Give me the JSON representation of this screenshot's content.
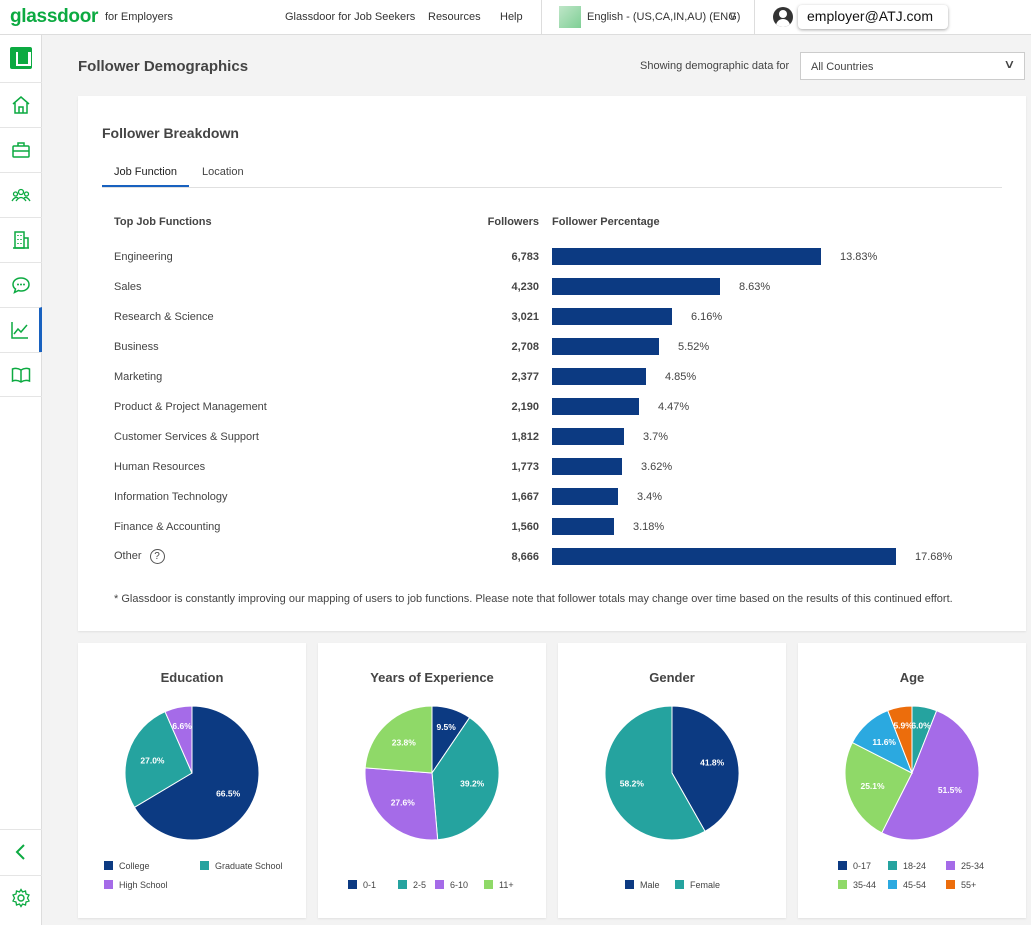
{
  "topbar": {
    "logo": "glassdoor",
    "logo_sub": "for Employers",
    "nav": [
      "Glassdoor for Job Seekers",
      "Resources",
      "Help"
    ],
    "language": "English - (US,CA,IN,AU) (ENG)",
    "user_email": "employer@ATJ.com"
  },
  "sidebar": {
    "items": [
      "home-icon",
      "briefcase-icon",
      "people-icon",
      "building-icon",
      "chat-icon",
      "analytics-icon",
      "book-icon"
    ],
    "active": "analytics-icon"
  },
  "page": {
    "title": "Follower Demographics",
    "filter_label": "Showing demographic data for",
    "filter_value": "All Countries"
  },
  "breakdown": {
    "title": "Follower Breakdown",
    "tabs": [
      "Job Function",
      "Location"
    ],
    "active_tab": "Job Function",
    "col_function": "Top Job Functions",
    "col_followers": "Followers",
    "col_percentage": "Follower Percentage",
    "rows": [
      {
        "label": "Engineering",
        "count": "6,783",
        "pct": "13.83%",
        "value": 13.83
      },
      {
        "label": "Sales",
        "count": "4,230",
        "pct": "8.63%",
        "value": 8.63
      },
      {
        "label": "Research & Science",
        "count": "3,021",
        "pct": "6.16%",
        "value": 6.16
      },
      {
        "label": "Business",
        "count": "2,708",
        "pct": "5.52%",
        "value": 5.52
      },
      {
        "label": "Marketing",
        "count": "2,377",
        "pct": "4.85%",
        "value": 4.85
      },
      {
        "label": "Product & Project Management",
        "count": "2,190",
        "pct": "4.47%",
        "value": 4.47
      },
      {
        "label": "Customer Services & Support",
        "count": "1,812",
        "pct": "3.7%",
        "value": 3.7
      },
      {
        "label": "Human Resources",
        "count": "1,773",
        "pct": "3.62%",
        "value": 3.62
      },
      {
        "label": "Information Technology",
        "count": "1,667",
        "pct": "3.4%",
        "value": 3.4
      },
      {
        "label": "Finance & Accounting",
        "count": "1,560",
        "pct": "3.18%",
        "value": 3.18
      },
      {
        "label": "Other",
        "count": "8,666",
        "pct": "17.68%",
        "value": 17.68,
        "help": "?"
      }
    ],
    "footnote": "* Glassdoor is constantly improving our mapping of users to job functions. Please note that follower totals may change over time based on the results of this continued effort."
  },
  "colors": {
    "bar": "#0c3a82",
    "accent": "#0caa41",
    "navy": "#0c3a82",
    "teal": "#25a39f",
    "purple": "#a56be8",
    "green": "#8fd968",
    "sky": "#2ba9e0",
    "orange": "#ec6d0c"
  },
  "chart_data": [
    {
      "type": "pie",
      "title": "Education",
      "slices": [
        {
          "name": "College",
          "value": 66.5,
          "label": "66.5%",
          "color": "#0c3a82"
        },
        {
          "name": "Graduate School",
          "value": 27.0,
          "label": "27.0%",
          "color": "#25a39f"
        },
        {
          "name": "High School",
          "value": 6.6,
          "label": "6.6%",
          "color": "#a56be8"
        }
      ]
    },
    {
      "type": "pie",
      "title": "Years of Experience",
      "slices": [
        {
          "name": "0-1",
          "value": 9.5,
          "label": "9.5%",
          "color": "#0c3a82"
        },
        {
          "name": "2-5",
          "value": 39.2,
          "label": "39.2%",
          "color": "#25a39f"
        },
        {
          "name": "6-10",
          "value": 27.6,
          "label": "27.6%",
          "color": "#a56be8"
        },
        {
          "name": "11+",
          "value": 23.8,
          "label": "23.8%",
          "color": "#8fd968"
        }
      ]
    },
    {
      "type": "pie",
      "title": "Gender",
      "slices": [
        {
          "name": "Male",
          "value": 41.8,
          "label": "41.8%",
          "color": "#0c3a82"
        },
        {
          "name": "Female",
          "value": 58.2,
          "label": "58.2%",
          "color": "#25a39f"
        }
      ]
    },
    {
      "type": "pie",
      "title": "Age",
      "slices": [
        {
          "name": "0-17",
          "value": 0.0,
          "label": "",
          "color": "#0c3a82"
        },
        {
          "name": "18-24",
          "value": 6.0,
          "label": "6.0%",
          "color": "#25a39f"
        },
        {
          "name": "25-34",
          "value": 51.5,
          "label": "51.5%",
          "color": "#a56be8"
        },
        {
          "name": "35-44",
          "value": 25.1,
          "label": "25.1%",
          "color": "#8fd968"
        },
        {
          "name": "45-54",
          "value": 11.6,
          "label": "11.6%",
          "color": "#2ba9e0"
        },
        {
          "name": "55+",
          "value": 5.9,
          "label": "5.9%",
          "color": "#ec6d0c"
        }
      ]
    }
  ]
}
